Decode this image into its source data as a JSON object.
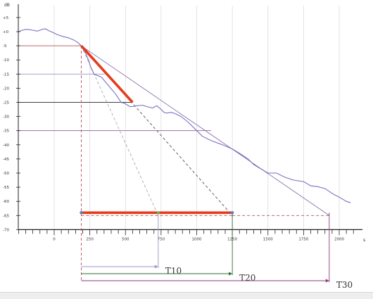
{
  "chart_data": {
    "type": "line",
    "xlabel": "s",
    "ylabel": "dB",
    "xlim": [
      -250,
      2100
    ],
    "ylim": [
      -70,
      8
    ],
    "x_ticks": [
      0,
      250,
      500,
      750,
      1000,
      1250,
      1500,
      1750,
      2000
    ],
    "y_ticks": [
      5,
      0,
      -5,
      -10,
      -15,
      -20,
      -25,
      -30,
      -35,
      -40,
      -45,
      -50,
      -55,
      -60,
      -65,
      -70
    ],
    "x_tick_labels": [
      "0",
      "250",
      "500",
      "750",
      "1000",
      "1250",
      "1500",
      "1750",
      "2000"
    ],
    "y_tick_labels": [
      "+5",
      "+0",
      "-5",
      "-10",
      "-15",
      "-20",
      "-25",
      "-30",
      "-35",
      "-40",
      "-45",
      "-50",
      "-55",
      "-60",
      "-65",
      "-70"
    ],
    "grid": "vertical",
    "series": [
      {
        "role": "decay-curve",
        "color": "#7a72c0",
        "x": [
          -250,
          -230,
          -200,
          -170,
          -150,
          -120,
          -100,
          -80,
          -60,
          -40,
          0,
          20,
          60,
          100,
          140,
          170,
          190,
          200,
          220,
          240,
          260,
          280,
          300,
          330,
          380,
          430,
          470,
          500,
          530,
          550,
          580,
          620,
          650,
          690,
          720,
          750,
          770,
          790,
          820,
          850,
          890,
          940,
          980,
          1040,
          1100,
          1180,
          1250,
          1300,
          1360,
          1400,
          1450,
          1500,
          1560,
          1620,
          1680,
          1750,
          1800,
          1850,
          1900,
          1960,
          2000,
          2050,
          2080
        ],
        "y": [
          0,
          0.4,
          0.8,
          0.7,
          0.5,
          0.2,
          0.5,
          0.9,
          1.0,
          0.4,
          -0.5,
          -1.0,
          -1.7,
          -2.2,
          -3.0,
          -4.0,
          -5.0,
          -6.0,
          -7.5,
          -10.0,
          -13.0,
          -15.0,
          -15.5,
          -16.0,
          -19.0,
          -22.0,
          -25.0,
          -25.5,
          -26.5,
          -26.5,
          -26.2,
          -26.0,
          -26.5,
          -27.0,
          -26.2,
          -27.5,
          -28.5,
          -28.8,
          -28.5,
          -29.0,
          -30.0,
          -32.0,
          -34.0,
          -37.0,
          -38.5,
          -40.0,
          -41.5,
          -43.0,
          -45.0,
          -47.0,
          -48.5,
          -50.0,
          -50.0,
          -51.5,
          -52.5,
          -53.0,
          -54.5,
          -54.8,
          -55.5,
          -57.5,
          -58.5,
          -60.0,
          -60.5
        ]
      },
      {
        "role": "fit-line",
        "color": "#8a6fb0",
        "style": "solid",
        "x": [
          190,
          1930
        ],
        "y": [
          -5,
          -65
        ]
      },
      {
        "role": "fit-line",
        "color": "#555555",
        "style": "dashed",
        "x": [
          190,
          1250
        ],
        "y": [
          -5,
          -65
        ]
      },
      {
        "role": "fit-line",
        "color": "#aaaaaa",
        "style": "dashed",
        "x": [
          190,
          730
        ],
        "y": [
          -5,
          -65
        ]
      },
      {
        "role": "highlight-slope",
        "color": "#e53b1c",
        "x": [
          190,
          550
        ],
        "y": [
          -5,
          -25
        ]
      },
      {
        "role": "highlight-baseline",
        "color": "#e53b1c",
        "x": [
          190,
          1250
        ],
        "y": [
          -64,
          -64
        ]
      }
    ],
    "reference_levels": [
      {
        "y": -5,
        "x_end": 190,
        "color": "#b55058"
      },
      {
        "y": -15,
        "x_end": 355,
        "color": "#9a98c4"
      },
      {
        "y": -25,
        "x_end": 550,
        "color": "#3e3e3e"
      },
      {
        "y": -35,
        "x_end": 1100,
        "color": "#8a5a98"
      }
    ],
    "baseline_markers": [
      {
        "x": 190,
        "y": -64,
        "color": "#5a7ec2"
      },
      {
        "x": 730,
        "y": -64,
        "color": "#6fb04a"
      },
      {
        "x": 1250,
        "y": -64,
        "color": "#5a7ec2"
      }
    ],
    "annotations": [
      {
        "label": "T10",
        "x_start": 190,
        "x_end": 730,
        "color": "#9a98c4"
      },
      {
        "label": "T20",
        "x_start": 190,
        "x_end": 1250,
        "color": "#2f6b37"
      },
      {
        "label": "T30",
        "x_start": 190,
        "x_end": 1930,
        "color": "#8a3a7a"
      }
    ]
  }
}
